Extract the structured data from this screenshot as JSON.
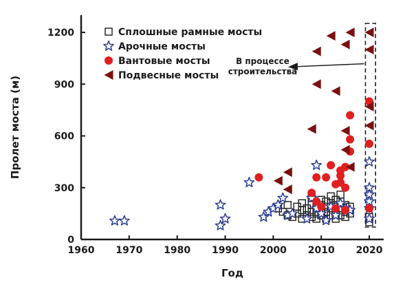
{
  "chart_data": {
    "type": "scatter",
    "title": "",
    "xlabel": "Год",
    "ylabel": "Пролет моста (м)",
    "xlim": [
      1960,
      2023
    ],
    "ylim": [
      0,
      1300
    ],
    "x_ticks": [
      1960,
      1970,
      1980,
      1990,
      2000,
      2010,
      2020
    ],
    "y_ticks": [
      0,
      300,
      600,
      900,
      1200
    ],
    "legend_position": "top-left",
    "grid": false,
    "annotation": {
      "text_lines": [
        "В процессе",
        "строительства"
      ],
      "box_x_range": [
        2019.2,
        2021.3
      ],
      "arrow_to_year": 2003.5,
      "arrow_to_span": 1000
    },
    "series": [
      {
        "name": "Сплошные рамные мосты",
        "marker": "square",
        "color": "#1a1a1a",
        "points": [
          [
            2001,
            180
          ],
          [
            2002,
            160
          ],
          [
            2003,
            140
          ],
          [
            2003,
            200
          ],
          [
            2004,
            130
          ],
          [
            2005,
            150
          ],
          [
            2005,
            190
          ],
          [
            2006,
            120
          ],
          [
            2006,
            170
          ],
          [
            2006,
            210
          ],
          [
            2007,
            140
          ],
          [
            2007,
            180
          ],
          [
            2008,
            130
          ],
          [
            2008,
            160
          ],
          [
            2008,
            200
          ],
          [
            2008,
            240
          ],
          [
            2009,
            120
          ],
          [
            2009,
            150
          ],
          [
            2009,
            180
          ],
          [
            2009,
            210
          ],
          [
            2010,
            140
          ],
          [
            2010,
            170
          ],
          [
            2010,
            200
          ],
          [
            2010,
            230
          ],
          [
            2011,
            120
          ],
          [
            2011,
            160
          ],
          [
            2011,
            190
          ],
          [
            2011,
            220
          ],
          [
            2012,
            140
          ],
          [
            2012,
            180
          ],
          [
            2012,
            210
          ],
          [
            2012,
            250
          ],
          [
            2013,
            120
          ],
          [
            2013,
            160
          ],
          [
            2013,
            200
          ],
          [
            2013,
            230
          ],
          [
            2014,
            140
          ],
          [
            2014,
            180
          ],
          [
            2014,
            220
          ],
          [
            2014,
            260
          ],
          [
            2015,
            130
          ],
          [
            2015,
            160
          ],
          [
            2015,
            200
          ],
          [
            2016,
            150
          ],
          [
            2016,
            190
          ],
          [
            2020,
            100
          ],
          [
            2020,
            130
          ]
        ]
      },
      {
        "name": "Арочные мосты",
        "marker": "star",
        "color": "#2d3e8f",
        "points": [
          [
            1967,
            108
          ],
          [
            1969,
            108
          ],
          [
            1989,
            80
          ],
          [
            1989,
            200
          ],
          [
            1990,
            120
          ],
          [
            1995,
            330
          ],
          [
            1998,
            130
          ],
          [
            1999,
            160
          ],
          [
            2000,
            180
          ],
          [
            2001,
            200
          ],
          [
            2002,
            240
          ],
          [
            2003,
            140
          ],
          [
            2004,
            150
          ],
          [
            2007,
            120
          ],
          [
            2008,
            240
          ],
          [
            2009,
            430
          ],
          [
            2009,
            180
          ],
          [
            2010,
            150
          ],
          [
            2011,
            110
          ],
          [
            2012,
            190
          ],
          [
            2013,
            140
          ],
          [
            2014,
            210
          ],
          [
            2015,
            180
          ],
          [
            2016,
            170
          ],
          [
            2020,
            450
          ],
          [
            2020,
            300
          ],
          [
            2020,
            260
          ],
          [
            2020,
            220
          ],
          [
            2020,
            180
          ],
          [
            2020,
            120
          ]
        ]
      },
      {
        "name": "Вантовые мосты",
        "marker": "circle",
        "color": "#e02020",
        "points": [
          [
            1997,
            360
          ],
          [
            2008,
            270
          ],
          [
            2009,
            360
          ],
          [
            2009,
            220
          ],
          [
            2010,
            190
          ],
          [
            2011,
            360
          ],
          [
            2012,
            430
          ],
          [
            2013,
            320
          ],
          [
            2013,
            180
          ],
          [
            2014,
            370
          ],
          [
            2014,
            400
          ],
          [
            2014,
            330
          ],
          [
            2015,
            300
          ],
          [
            2015,
            420
          ],
          [
            2015,
            170
          ],
          [
            2016,
            720
          ],
          [
            2016,
            580
          ],
          [
            2016,
            510
          ],
          [
            2020,
            800
          ],
          [
            2020,
            555
          ],
          [
            2020,
            180
          ]
        ]
      },
      {
        "name": "Подвесные мосты",
        "marker": "triangle",
        "color": "#7a1010",
        "points": [
          [
            2001,
            340
          ],
          [
            2003,
            390
          ],
          [
            2003,
            290
          ],
          [
            2008,
            640
          ],
          [
            2009,
            1090
          ],
          [
            2009,
            900
          ],
          [
            2012,
            1180
          ],
          [
            2013,
            860
          ],
          [
            2015,
            1130
          ],
          [
            2015,
            630
          ],
          [
            2015,
            520
          ],
          [
            2016,
            1200
          ],
          [
            2016,
            420
          ],
          [
            2020,
            1200
          ],
          [
            2020,
            1100
          ],
          [
            2020,
            770
          ],
          [
            2020,
            660
          ]
        ]
      }
    ]
  }
}
